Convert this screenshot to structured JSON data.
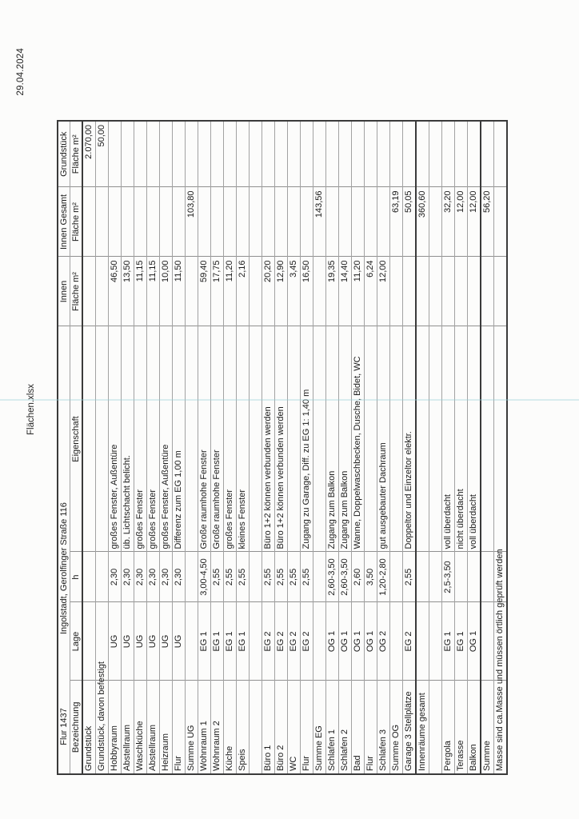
{
  "page": {
    "date": "29.04.2024",
    "filename": "Flächen.xlsx"
  },
  "table": {
    "header_row1": {
      "flur": "Flur 1437",
      "address": "Ingolstadt, Gerolfinger Straße 116",
      "innen": "Innen",
      "innen_gesamt": "Innen Gesamt",
      "grundstueck": "Grundstück"
    },
    "header_row2": {
      "bezeichnung": "Bezeichnung",
      "lage": "Lage",
      "h": "h",
      "eigenschaft": "Eigenschaft",
      "flaeche_innen": "Fläche m²",
      "flaeche_gesamt": "Fläche m²",
      "flaeche_grund": "Fläche m²"
    },
    "rows": [
      {
        "name": "Grundstück",
        "lage": "",
        "h": "",
        "eigenschaft": "",
        "innen": "",
        "gesamt": "",
        "grund": "2.070,00"
      },
      {
        "name": "Grundstück, davon befestigt",
        "lage": "",
        "h": "",
        "eigenschaft": "",
        "innen": "",
        "gesamt": "",
        "grund": "50,00"
      },
      {
        "name": "Hobbyraum",
        "lage": "UG",
        "h": "2,30",
        "eigenschaft": "großes Fenster, Außentüre",
        "innen": "46,50",
        "gesamt": "",
        "grund": ""
      },
      {
        "name": "Abstellraum",
        "lage": "UG",
        "h": "2,30",
        "eigenschaft": "üb. Lichtschacht belicht.",
        "innen": "13,50",
        "gesamt": "",
        "grund": ""
      },
      {
        "name": "Waschküche",
        "lage": "UG",
        "h": "2,30",
        "eigenschaft": "großes Fenster",
        "innen": "11,15",
        "gesamt": "",
        "grund": ""
      },
      {
        "name": "Abstellraum",
        "lage": "UG",
        "h": "2,30",
        "eigenschaft": "großes Fenster",
        "innen": "11,15",
        "gesamt": "",
        "grund": ""
      },
      {
        "name": "Heizraum",
        "lage": "UG",
        "h": "2,30",
        "eigenschaft": "großes Fenster, Außentüre",
        "innen": "10,00",
        "gesamt": "",
        "grund": ""
      },
      {
        "name": "Flur",
        "lage": "UG",
        "h": "2,30",
        "eigenschaft": "Differenz zum EG 1,00 m",
        "innen": "11,50",
        "gesamt": "",
        "grund": ""
      },
      {
        "name": "Summe UG",
        "lage": "",
        "h": "",
        "eigenschaft": "",
        "innen": "",
        "gesamt": "103,80",
        "grund": ""
      },
      {
        "name": "Wohnraum 1",
        "lage": "EG 1",
        "h": "3,00-4,50",
        "eigenschaft": "Große raumhohe Fenster",
        "innen": "59,40",
        "gesamt": "",
        "grund": ""
      },
      {
        "name": "Wohnraum 2",
        "lage": "EG 1",
        "h": "2,55",
        "eigenschaft": "Große raumhohe Fenster",
        "innen": "17,75",
        "gesamt": "",
        "grund": ""
      },
      {
        "name": "Küche",
        "lage": "EG 1",
        "h": "2,55",
        "eigenschaft": "großes Fenster",
        "innen": "11,20",
        "gesamt": "",
        "grund": ""
      },
      {
        "name": "Speis",
        "lage": "EG 1",
        "h": "2,55",
        "eigenschaft": "kleines Fenster",
        "innen": "2,16",
        "gesamt": "",
        "grund": ""
      },
      {
        "name": "",
        "lage": "",
        "h": "",
        "eigenschaft": "",
        "innen": "",
        "gesamt": "",
        "grund": ""
      },
      {
        "name": "Büro 1",
        "lage": "EG 2",
        "h": "2,55",
        "eigenschaft": "Büro 1+2 können verbunden werden",
        "innen": "20,20",
        "gesamt": "",
        "grund": ""
      },
      {
        "name": "Büro 2",
        "lage": "EG 2",
        "h": "2,55",
        "eigenschaft": "Büro 1+2 können verbunden werden",
        "innen": "12,90",
        "gesamt": "",
        "grund": ""
      },
      {
        "name": "WC",
        "lage": "EG 2",
        "h": "2,55",
        "eigenschaft": "",
        "innen": "3,45",
        "gesamt": "",
        "grund": ""
      },
      {
        "name": "Flur",
        "lage": "EG 2",
        "h": "2,55",
        "eigenschaft": "Zugang zu Garage, Diff. zu EG 1: 1,40 m",
        "innen": "16,50",
        "gesamt": "",
        "grund": ""
      },
      {
        "name": "Summe EG",
        "lage": "",
        "h": "",
        "eigenschaft": "",
        "innen": "",
        "gesamt": "143,56",
        "grund": ""
      },
      {
        "name": "Schlafen 1",
        "lage": "OG 1",
        "h": "2,60-3,50",
        "eigenschaft": "Zugang zum Balkon",
        "innen": "19,35",
        "gesamt": "",
        "grund": ""
      },
      {
        "name": "Schlafen 2",
        "lage": "OG 1",
        "h": "2,60-3,50",
        "eigenschaft": "Zugang zum Balkon",
        "innen": "14,40",
        "gesamt": "",
        "grund": ""
      },
      {
        "name": "Bad",
        "lage": "OG 1",
        "h": "2,60",
        "eigenschaft": "Wanne, Doppelwaschbecken, Dusche, Bidet, WC",
        "innen": "11,20",
        "gesamt": "",
        "grund": ""
      },
      {
        "name": "Flur",
        "lage": "OG 1",
        "h": "3,50",
        "eigenschaft": "",
        "innen": "6,24",
        "gesamt": "",
        "grund": ""
      },
      {
        "name": "Schlafen 3",
        "lage": "OG 2",
        "h": "1,20-2,80",
        "eigenschaft": "gut ausgebauter Dachraum",
        "innen": "12,00",
        "gesamt": "",
        "grund": ""
      },
      {
        "name": "Summe OG",
        "lage": "",
        "h": "",
        "eigenschaft": "",
        "innen": "",
        "gesamt": "63,19",
        "grund": ""
      },
      {
        "name": "Garage 3 Stellplätze",
        "lage": "EG 2",
        "h": "2,55",
        "eigenschaft": "Doppeltor und Einzeltor elektr.",
        "innen": "",
        "gesamt": "50,05",
        "grund": ""
      },
      {
        "name": "Innenräume gesamt",
        "lage": "",
        "h": "",
        "eigenschaft": "",
        "innen": "",
        "gesamt": "360,60",
        "grund": ""
      },
      {
        "name": "",
        "lage": "",
        "h": "",
        "eigenschaft": "",
        "innen": "",
        "gesamt": "",
        "grund": ""
      },
      {
        "name": "Pergola",
        "lage": "EG 1",
        "h": "2,5-3,50",
        "eigenschaft": "voll überdacht",
        "innen": "",
        "gesamt": "32,20",
        "grund": ""
      },
      {
        "name": "Terasse",
        "lage": "EG 1",
        "h": "",
        "eigenschaft": "nicht überdacht",
        "innen": "",
        "gesamt": "12,00",
        "grund": ""
      },
      {
        "name": "Balkon",
        "lage": "OG 1",
        "h": "",
        "eigenschaft": "voll überdacht",
        "innen": "",
        "gesamt": "12,00",
        "grund": ""
      },
      {
        "name": "Summe",
        "lage": "",
        "h": "",
        "eigenschaft": "",
        "innen": "",
        "gesamt": "56,20",
        "grund": ""
      },
      {
        "name": "Masse sind ca.Masse und müssen örtlich geprüft werden",
        "lage": "",
        "h": "",
        "eigenschaft": "",
        "innen": "",
        "gesamt": "",
        "grund": ""
      }
    ]
  }
}
